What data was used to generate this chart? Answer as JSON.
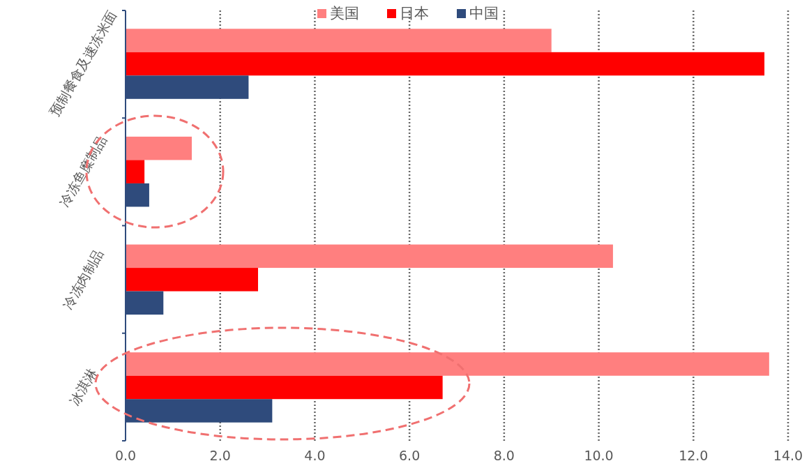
{
  "chart_data": {
    "type": "bar",
    "orientation": "horizontal",
    "categories": [
      "预制餐食及速冻米面",
      "冷冻鱼糜制品",
      "冷冻肉制品",
      "冰淇淋"
    ],
    "series": [
      {
        "name": "美国",
        "color": "#ff7f7f",
        "values": [
          9.0,
          1.4,
          10.3,
          13.6
        ]
      },
      {
        "name": "日本",
        "color": "#ff0000",
        "values": [
          13.5,
          0.4,
          2.8,
          6.7
        ]
      },
      {
        "name": "中国",
        "color": "#2f4b7c",
        "values": [
          2.6,
          0.5,
          0.8,
          3.1
        ]
      }
    ],
    "xlim": [
      0,
      14
    ],
    "xticks": [
      {
        "value": 0,
        "label": "0.0"
      },
      {
        "value": 2,
        "label": "2.0"
      },
      {
        "value": 4,
        "label": "4.0"
      },
      {
        "value": 6,
        "label": "6.0"
      },
      {
        "value": 8,
        "label": "8.0"
      },
      {
        "value": 10,
        "label": "10.0"
      },
      {
        "value": 12,
        "label": "12.0"
      },
      {
        "value": 14,
        "label": "14.0"
      }
    ],
    "grid": "x",
    "legend": "top"
  }
}
